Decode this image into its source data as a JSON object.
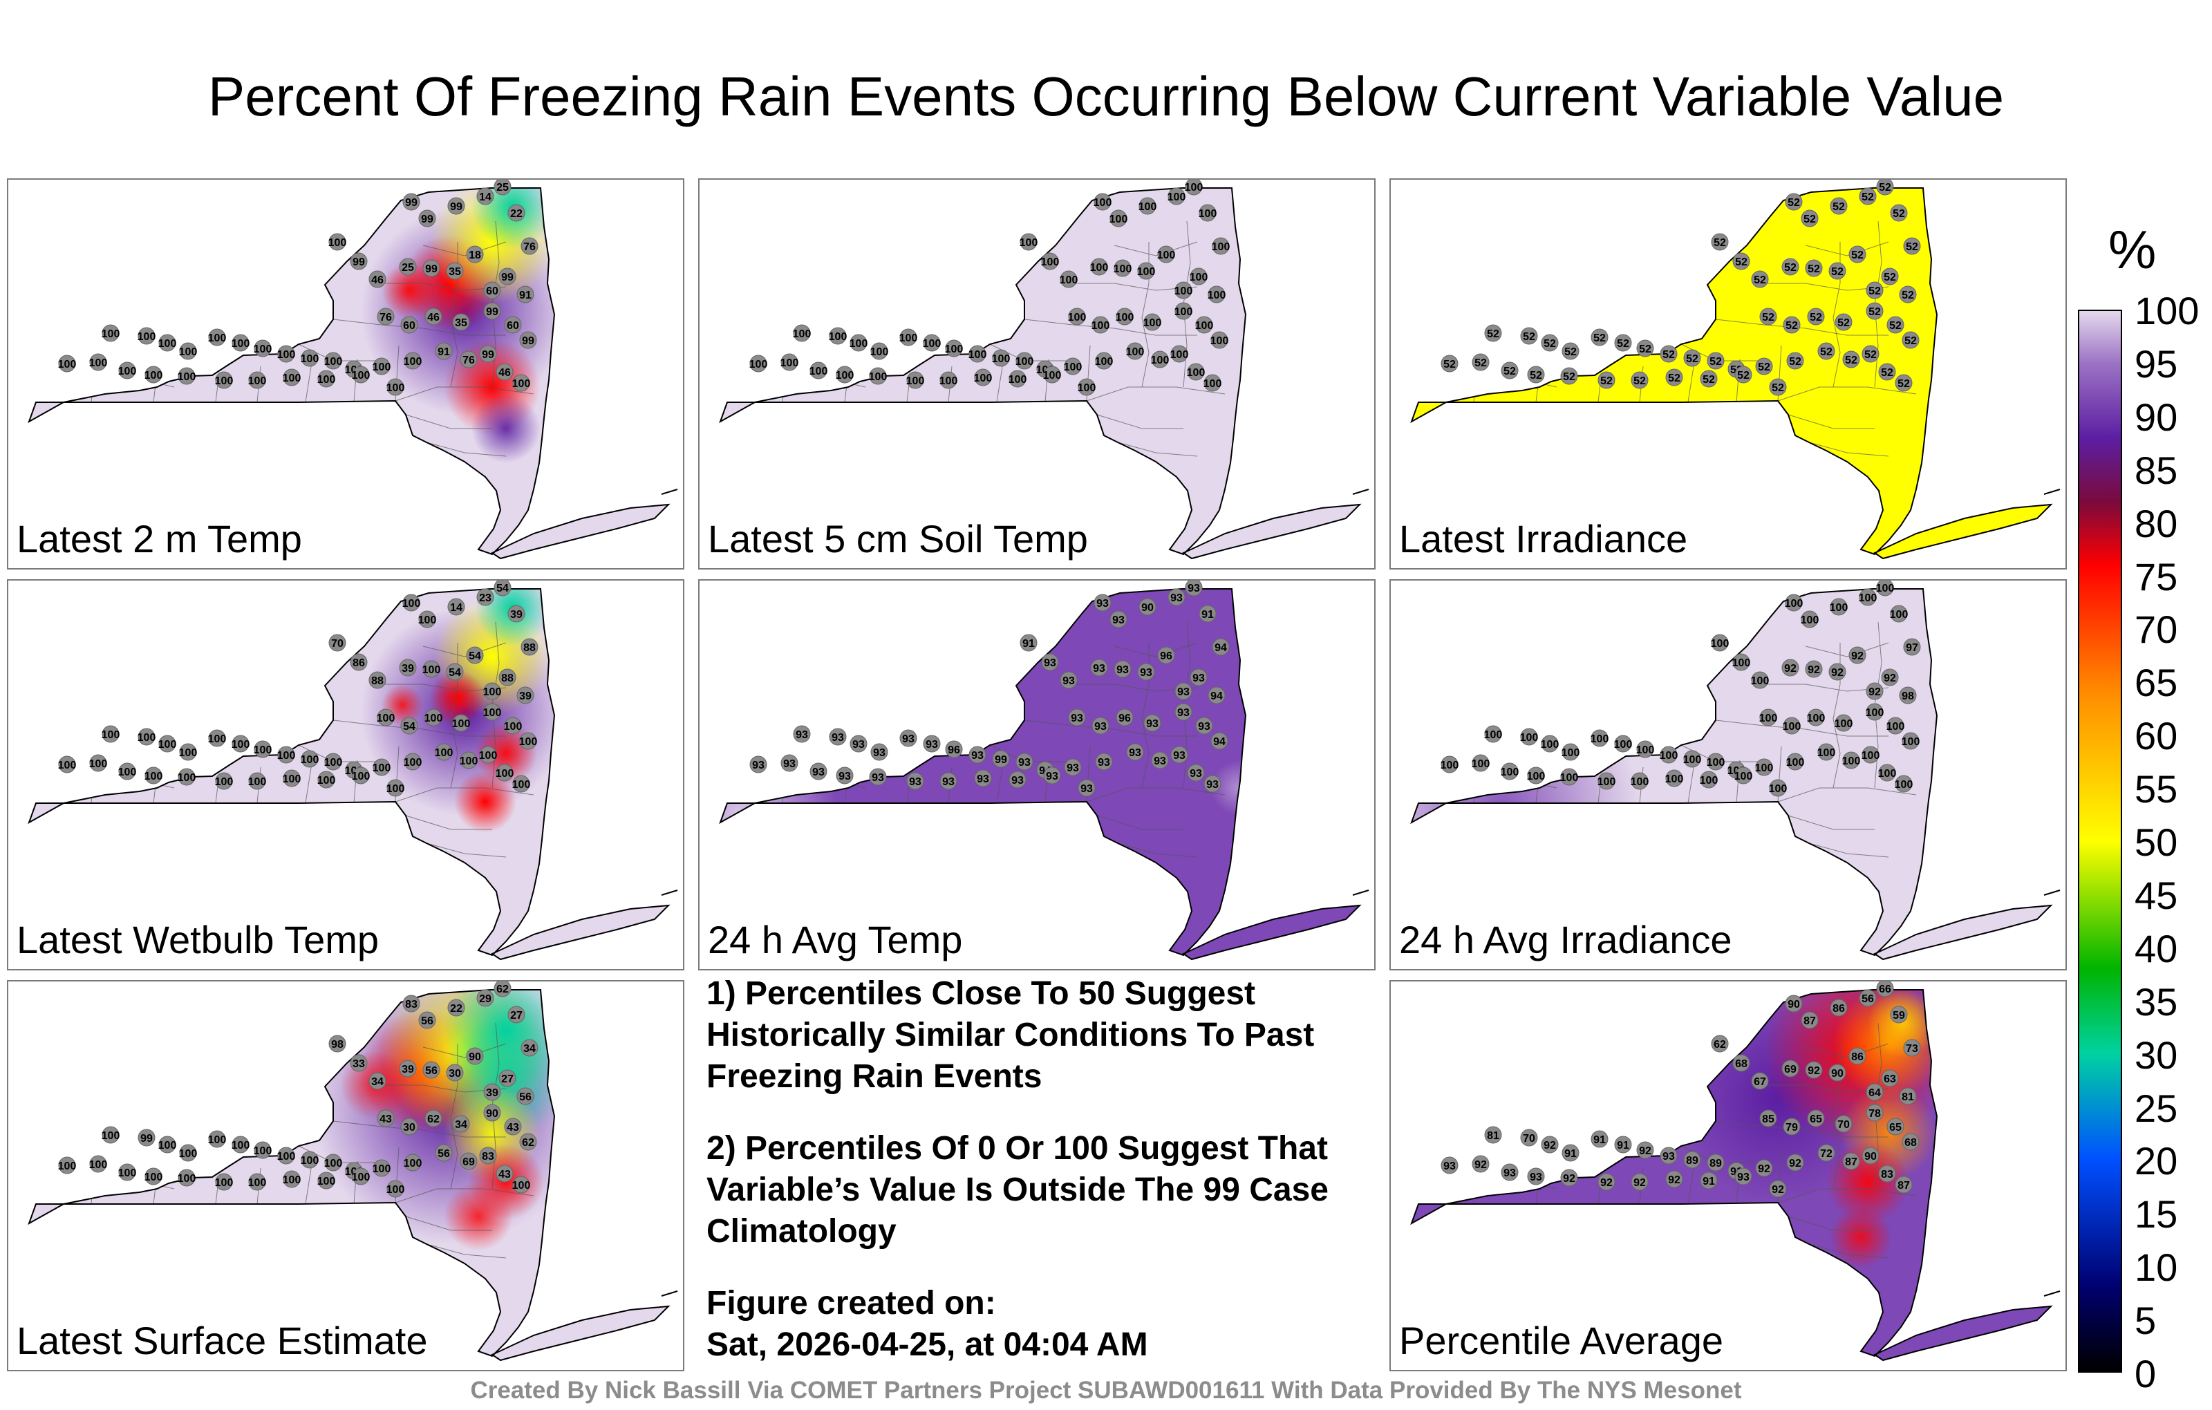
{
  "title": "Percent Of Freezing Rain Events Occurring Below Current Variable Value",
  "colorbar": {
    "unit": "%",
    "ticks": [
      "100",
      "95",
      "90",
      "85",
      "80",
      "75",
      "70",
      "65",
      "60",
      "55",
      "50",
      "45",
      "40",
      "35",
      "30",
      "25",
      "20",
      "15",
      "10",
      "5",
      "0"
    ],
    "colors": [
      "#e4d8ec",
      "#9b72c4",
      "#5c1ea2",
      "#7a0a3c",
      "#ff0000",
      "#ff8c00",
      "#ffff00",
      "#00b400",
      "#00d2a0",
      "#0050ff",
      "#000070",
      "#000000"
    ]
  },
  "panels": [
    {
      "label": "Latest 2 m Temp",
      "values": [
        "99",
        "99",
        "99",
        "14",
        "25",
        "22",
        "100",
        "99",
        "46",
        "25",
        "99",
        "35",
        "18",
        "60",
        "99",
        "76",
        "91",
        "76",
        "60",
        "46",
        "35",
        "99",
        "60",
        "99",
        "91",
        "76",
        "99",
        "46",
        "100",
        "100",
        "100",
        "100",
        "100",
        "100",
        "100",
        "100",
        "100",
        "100",
        "100",
        "100",
        "100",
        "100",
        "100",
        "100",
        "100",
        "100",
        "100",
        "100",
        "100",
        "100",
        "100",
        "100",
        "100"
      ],
      "colors": {
        "fill": "#e4d8ec",
        "hot": "#ff0000",
        "mid": "#5c1ea2",
        "cool": "#ffff00",
        "cold": "#00d2a0"
      }
    },
    {
      "label": "Latest 5 cm Soil Temp",
      "values": [
        "100",
        "100",
        "100",
        "100",
        "100",
        "100",
        "100",
        "100",
        "100",
        "100",
        "100",
        "100",
        "100",
        "100",
        "100",
        "100",
        "100",
        "100",
        "100",
        "100",
        "100",
        "100",
        "100",
        "100",
        "100",
        "100",
        "100",
        "100",
        "100",
        "100",
        "100",
        "100",
        "100",
        "100",
        "100",
        "100",
        "100",
        "100",
        "100",
        "100",
        "100",
        "100",
        "100",
        "100",
        "100",
        "100",
        "100",
        "100",
        "100",
        "100",
        "100",
        "100",
        "100"
      ],
      "colors": {
        "fill": "#e4d8ec"
      }
    },
    {
      "label": "Latest Irradiance",
      "values": [
        "52",
        "52",
        "52",
        "52",
        "52",
        "52",
        "52",
        "52",
        "52",
        "52",
        "52",
        "52",
        "52",
        "52",
        "52",
        "52",
        "52",
        "52",
        "52",
        "52",
        "52",
        "52",
        "52",
        "52",
        "52",
        "52",
        "52",
        "52",
        "52",
        "52",
        "52",
        "52",
        "52",
        "52",
        "52",
        "52",
        "52",
        "52",
        "52",
        "52",
        "52",
        "52",
        "52",
        "52",
        "52",
        "52",
        "52",
        "52",
        "52",
        "52",
        "52",
        "52",
        "52"
      ],
      "colors": {
        "fill": "#ffff00"
      }
    },
    {
      "label": "Latest Wetbulb Temp",
      "values": [
        "100",
        "100",
        "14",
        "23",
        "54",
        "39",
        "70",
        "86",
        "88",
        "39",
        "100",
        "54",
        "54",
        "100",
        "88",
        "88",
        "39",
        "100",
        "54",
        "100",
        "100",
        "100",
        "100",
        "100",
        "100",
        "100",
        "100",
        "100",
        "100",
        "100",
        "100",
        "100",
        "100",
        "100",
        "100",
        "100",
        "100",
        "100",
        "100",
        "100",
        "100",
        "100",
        "100",
        "100",
        "100",
        "100",
        "100",
        "100",
        "100",
        "100",
        "100",
        "100",
        "100"
      ],
      "colors": {
        "fill": "#e4d8ec",
        "hot": "#ff0000",
        "mid": "#5c1ea2",
        "cool": "#ffff00",
        "cold": "#00d2a0"
      }
    },
    {
      "label": "24 h Avg Temp",
      "values": [
        "93",
        "93",
        "90",
        "93",
        "93",
        "91",
        "91",
        "93",
        "93",
        "93",
        "93",
        "93",
        "96",
        "93",
        "93",
        "94",
        "94",
        "93",
        "93",
        "96",
        "93",
        "93",
        "93",
        "94",
        "93",
        "93",
        "93",
        "93",
        "93",
        "93",
        "93",
        "93",
        "93",
        "93",
        "93",
        "96",
        "93",
        "99",
        "93",
        "94",
        "93",
        "93",
        "93",
        "93",
        "93",
        "93",
        "93",
        "93",
        "93",
        "93",
        "93",
        "93",
        "93"
      ],
      "colors": {
        "fill": "#7e48b6",
        "edge": "#e4d8ec"
      }
    },
    {
      "label": "24 h Avg Irradiance",
      "values": [
        "100",
        "100",
        "100",
        "100",
        "100",
        "100",
        "100",
        "100",
        "100",
        "92",
        "92",
        "92",
        "92",
        "92",
        "92",
        "97",
        "98",
        "100",
        "100",
        "100",
        "100",
        "100",
        "100",
        "100",
        "100",
        "100",
        "100",
        "100",
        "100",
        "100",
        "100",
        "100",
        "100",
        "100",
        "100",
        "100",
        "100",
        "100",
        "100",
        "100",
        "100",
        "100",
        "100",
        "100",
        "100",
        "100",
        "100",
        "100",
        "100",
        "100",
        "100",
        "100",
        "100"
      ],
      "colors": {
        "fill": "#e4d8ec",
        "west": "#7e48b6"
      }
    },
    {
      "label": "Latest Surface Estimate",
      "values": [
        "83",
        "56",
        "22",
        "29",
        "62",
        "27",
        "98",
        "33",
        "34",
        "39",
        "56",
        "30",
        "90",
        "39",
        "27",
        "34",
        "56",
        "43",
        "30",
        "62",
        "34",
        "90",
        "43",
        "62",
        "56",
        "69",
        "83",
        "43",
        "100",
        "100",
        "99",
        "100",
        "100",
        "100",
        "100",
        "100",
        "100",
        "100",
        "100",
        "100",
        "100",
        "100",
        "100",
        "100",
        "100",
        "100",
        "100",
        "100",
        "100",
        "100",
        "100",
        "100",
        "100"
      ],
      "colors": {
        "fill": "#e4d8ec",
        "hot": "#ff0000",
        "mid": "#5c1ea2",
        "cool": "#ffff00",
        "cold": "#00d2a0"
      }
    },
    {
      "label": "Percentile Average",
      "values": [
        "90",
        "87",
        "86",
        "56",
        "66",
        "59",
        "62",
        "68",
        "67",
        "69",
        "92",
        "90",
        "86",
        "64",
        "63",
        "73",
        "81",
        "85",
        "79",
        "65",
        "70",
        "78",
        "65",
        "68",
        "72",
        "87",
        "90",
        "83",
        "87",
        "81",
        "70",
        "92",
        "91",
        "91",
        "91",
        "92",
        "93",
        "89",
        "89",
        "91",
        "92",
        "92",
        "93",
        "92",
        "93",
        "93",
        "92",
        "92",
        "92",
        "92",
        "91",
        "93",
        "92"
      ],
      "colors": {
        "fill": "#7e48b6",
        "hot": "#ff0000",
        "mid": "#5c1ea2",
        "cool": "#ff8c00",
        "warm": "#ffd000"
      }
    }
  ],
  "notes": {
    "note1": "1) Percentiles Close To 50 Suggest Historically Similar Conditions To Past Freezing Rain Events",
    "note2": "2) Percentiles Of 0 Or 100 Suggest That Variable’s Value Is Outside The 99 Case Climatology",
    "created_label": "Figure created on:",
    "created_date": "Sat, 2026-04-25, at 04:04 AM"
  },
  "footer": "Created By Nick Bassill Via COMET Partners Project SUBAWD001611 With Data Provided By The NYS Mesonet"
}
